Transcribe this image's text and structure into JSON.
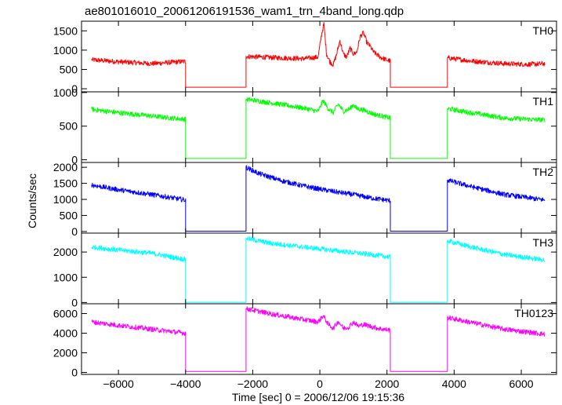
{
  "chart_data": {
    "type": "line",
    "title": "ae801016010_20061206191536_wam1_trn_4band_long.qdp",
    "xlabel": "Time [sec] 0 = 2006/12/06 19:15:36",
    "ylabel": "Counts/sec",
    "xlim": [
      -7100,
      7050
    ],
    "x_ticks": [
      -6000,
      -4000,
      -2000,
      0,
      2000,
      4000,
      6000
    ],
    "x_tick_labels": [
      "−6000",
      "−4000",
      "−2000",
      "0",
      "2000",
      "4000",
      "6000"
    ],
    "grid": false,
    "legend": "none",
    "gaps": [
      [
        -4000,
        -2200
      ],
      [
        2100,
        3800
      ]
    ],
    "panels": [
      {
        "name": "TH0",
        "color": "#ff0000",
        "ylim": [
          -80,
          1750
        ],
        "y_ticks": [
          0,
          500,
          1000,
          1500
        ],
        "y_tick_labels": [
          "0",
          "500",
          "1000",
          "1500"
        ],
        "points": [
          [
            -6800,
            750
          ],
          [
            -6000,
            700
          ],
          [
            -5000,
            650
          ],
          [
            -4000,
            710
          ],
          [
            -4000,
            40
          ],
          [
            -2200,
            40
          ],
          [
            -2200,
            840
          ],
          [
            -1500,
            810
          ],
          [
            -500,
            780
          ],
          [
            -50,
            820
          ],
          [
            50,
            1400
          ],
          [
            120,
            1680
          ],
          [
            200,
            900
          ],
          [
            300,
            700
          ],
          [
            400,
            620
          ],
          [
            500,
            900
          ],
          [
            600,
            1250
          ],
          [
            700,
            900
          ],
          [
            800,
            820
          ],
          [
            900,
            1050
          ],
          [
            1000,
            900
          ],
          [
            1100,
            950
          ],
          [
            1200,
            1350
          ],
          [
            1300,
            1450
          ],
          [
            1400,
            1200
          ],
          [
            1500,
            1100
          ],
          [
            1600,
            950
          ],
          [
            1800,
            820
          ],
          [
            2000,
            740
          ],
          [
            2100,
            720
          ],
          [
            2100,
            40
          ],
          [
            3800,
            40
          ],
          [
            3800,
            800
          ],
          [
            4500,
            720
          ],
          [
            5500,
            650
          ],
          [
            6200,
            630
          ],
          [
            6700,
            650
          ]
        ]
      },
      {
        "name": "TH1",
        "color": "#00ff00",
        "ylim": [
          -40,
          1010
        ],
        "y_ticks": [
          0,
          500,
          1000
        ],
        "y_tick_labels": [
          "0",
          "500",
          "1000"
        ],
        "points": [
          [
            -6800,
            750
          ],
          [
            -6000,
            700
          ],
          [
            -5000,
            650
          ],
          [
            -4000,
            600
          ],
          [
            -4000,
            20
          ],
          [
            -2200,
            20
          ],
          [
            -2200,
            900
          ],
          [
            -1500,
            850
          ],
          [
            -500,
            770
          ],
          [
            -50,
            720
          ],
          [
            100,
            880
          ],
          [
            250,
            760
          ],
          [
            400,
            700
          ],
          [
            550,
            830
          ],
          [
            700,
            720
          ],
          [
            900,
            760
          ],
          [
            1000,
            820
          ],
          [
            1100,
            760
          ],
          [
            1300,
            740
          ],
          [
            1600,
            680
          ],
          [
            2100,
            620
          ],
          [
            2100,
            20
          ],
          [
            3800,
            20
          ],
          [
            3800,
            760
          ],
          [
            4500,
            700
          ],
          [
            5500,
            620
          ],
          [
            6700,
            590
          ]
        ]
      },
      {
        "name": "TH2",
        "color": "#0000ff",
        "ylim": [
          -50,
          2150
        ],
        "y_ticks": [
          0,
          500,
          1000,
          1500,
          2000
        ],
        "y_tick_labels": [
          "0",
          "500",
          "1000",
          "1500",
          "2000"
        ],
        "points": [
          [
            -6800,
            1450
          ],
          [
            -6000,
            1300
          ],
          [
            -5000,
            1150
          ],
          [
            -4000,
            980
          ],
          [
            -4000,
            10
          ],
          [
            -2200,
            10
          ],
          [
            -2200,
            2000
          ],
          [
            -1800,
            1800
          ],
          [
            -1200,
            1600
          ],
          [
            -500,
            1420
          ],
          [
            0,
            1320
          ],
          [
            500,
            1230
          ],
          [
            1000,
            1150
          ],
          [
            1500,
            1050
          ],
          [
            2100,
            960
          ],
          [
            2100,
            10
          ],
          [
            3800,
            10
          ],
          [
            3800,
            1600
          ],
          [
            4500,
            1400
          ],
          [
            5500,
            1150
          ],
          [
            6700,
            980
          ]
        ]
      },
      {
        "name": "TH3",
        "color": "#00ffff",
        "ylim": [
          -50,
          2750
        ],
        "y_ticks": [
          0,
          1000,
          2000
        ],
        "y_tick_labels": [
          "0",
          "1000",
          "2000"
        ],
        "points": [
          [
            -6800,
            2200
          ],
          [
            -6000,
            2080
          ],
          [
            -5000,
            1950
          ],
          [
            -4000,
            1700
          ],
          [
            -4000,
            10
          ],
          [
            -2200,
            10
          ],
          [
            -2200,
            2550
          ],
          [
            -1500,
            2350
          ],
          [
            -500,
            2200
          ],
          [
            500,
            2050
          ],
          [
            1500,
            1900
          ],
          [
            2100,
            1800
          ],
          [
            2100,
            10
          ],
          [
            3800,
            10
          ],
          [
            3800,
            2450
          ],
          [
            4500,
            2200
          ],
          [
            5500,
            1900
          ],
          [
            6700,
            1680
          ]
        ]
      },
      {
        "name": "TH0123",
        "color": "#ff00ff",
        "ylim": [
          -200,
          7000
        ],
        "y_ticks": [
          0,
          2000,
          4000,
          6000
        ],
        "y_tick_labels": [
          "0",
          "2000",
          "4000",
          "6000"
        ],
        "points": [
          [
            -6800,
            5150
          ],
          [
            -6000,
            4800
          ],
          [
            -5000,
            4400
          ],
          [
            -4000,
            4000
          ],
          [
            -4000,
            100
          ],
          [
            -2200,
            100
          ],
          [
            -2200,
            6500
          ],
          [
            -1500,
            6000
          ],
          [
            -500,
            5400
          ],
          [
            -50,
            5150
          ],
          [
            100,
            5800
          ],
          [
            250,
            4900
          ],
          [
            400,
            4500
          ],
          [
            550,
            5200
          ],
          [
            700,
            4500
          ],
          [
            850,
            4600
          ],
          [
            1000,
            5150
          ],
          [
            1150,
            4700
          ],
          [
            1300,
            4900
          ],
          [
            1500,
            4700
          ],
          [
            1800,
            4450
          ],
          [
            2100,
            4300
          ],
          [
            2100,
            100
          ],
          [
            3800,
            100
          ],
          [
            3800,
            5600
          ],
          [
            4500,
            5100
          ],
          [
            5500,
            4400
          ],
          [
            6700,
            3900
          ]
        ]
      }
    ]
  }
}
